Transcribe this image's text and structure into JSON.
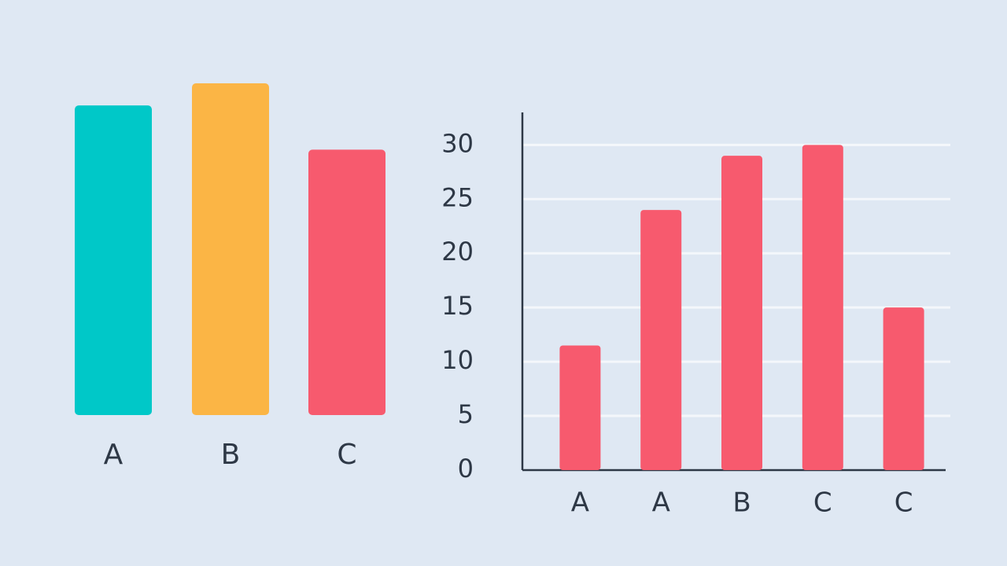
{
  "chart_data": [
    {
      "type": "bar",
      "categories": [
        "A",
        "B",
        "C"
      ],
      "values": [
        28,
        30,
        24
      ],
      "colors": [
        "#00c8c8",
        "#fbb545",
        "#f75a6e"
      ]
    },
    {
      "type": "bar",
      "categories": [
        "A",
        "A",
        "B",
        "C",
        "C"
      ],
      "values": [
        11.5,
        24,
        29,
        30,
        15
      ],
      "color": "#f75a6e",
      "ylim": [
        0,
        33
      ],
      "yticks": [
        0,
        5,
        10,
        15,
        20,
        25,
        30
      ],
      "grid": true
    }
  ]
}
